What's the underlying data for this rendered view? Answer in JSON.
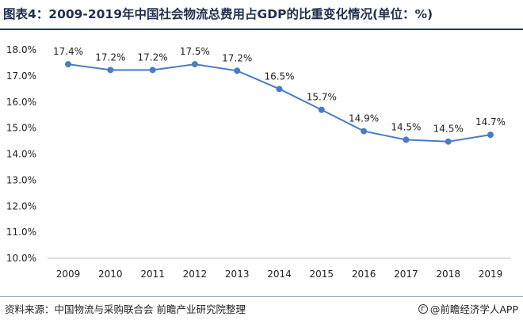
{
  "header": {
    "title": "图表4：2009-2019年中国社会物流总费用占GDP的比重变化情况(单位：%)"
  },
  "footer": {
    "source": "资料来源：中国物流与采购联合会 前瞻产业研究院整理",
    "brand": "@前瞻经济学人APP"
  },
  "chart_data": {
    "type": "line",
    "title": "图表4：2009-2019年中国社会物流总费用占GDP的比重变化情况(单位：%)",
    "x": [
      "2009",
      "2010",
      "2011",
      "2012",
      "2013",
      "2014",
      "2015",
      "2016",
      "2017",
      "2018",
      "2019"
    ],
    "series": [
      {
        "values": [
          17.4,
          17.2,
          17.2,
          17.5,
          17.2,
          16.5,
          15.7,
          14.9,
          14.5,
          14.5,
          14.7
        ],
        "value_labels": [
          "17.4%",
          "17.2%",
          "17.2%",
          "17.5%",
          "17.2%",
          "16.5%",
          "15.7%",
          "14.9%",
          "14.5%",
          "14.5%",
          "14.7%"
        ],
        "plotted_values": [
          17.45,
          17.23,
          17.23,
          17.45,
          17.2,
          16.5,
          15.7,
          14.88,
          14.55,
          14.48,
          14.74
        ],
        "color": "#4a7cc2"
      }
    ],
    "y_ticks": [
      "18.0%",
      "17.0%",
      "16.0%",
      "15.0%",
      "14.0%",
      "13.0%",
      "12.0%",
      "11.0%",
      "10.0%"
    ],
    "ylim": [
      10,
      18
    ],
    "grid": false,
    "legend": "none",
    "axis_color": "#bfbfbf"
  }
}
